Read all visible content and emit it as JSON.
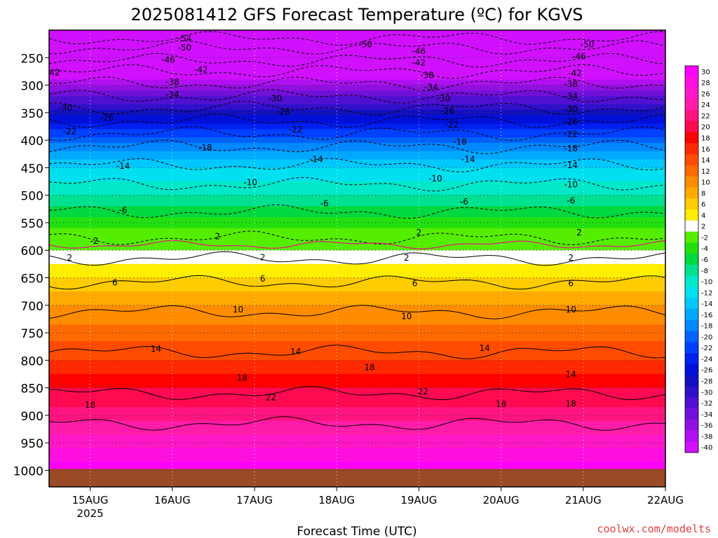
{
  "chart_data": {
    "type": "heatmap",
    "title": "2025081412 GFS Forecast Temperature (ºC) for KGVS",
    "xlabel": "Forecast Time (UTC)",
    "ylabel": "",
    "credit": "coolwx.com/modelts",
    "x_ticks": [
      {
        "t": 0.5,
        "label": "15AUG",
        "sub": "2025"
      },
      {
        "t": 1.5,
        "label": "16AUG",
        "sub": ""
      },
      {
        "t": 2.5,
        "label": "17AUG",
        "sub": ""
      },
      {
        "t": 3.5,
        "label": "18AUG",
        "sub": ""
      },
      {
        "t": 4.5,
        "label": "19AUG",
        "sub": ""
      },
      {
        "t": 5.5,
        "label": "20AUG",
        "sub": ""
      },
      {
        "t": 6.5,
        "label": "21AUG",
        "sub": ""
      },
      {
        "t": 7.5,
        "label": "22AUG",
        "sub": ""
      }
    ],
    "xlim": [
      0,
      7.5
    ],
    "y_ticks": [
      250,
      300,
      350,
      400,
      450,
      500,
      550,
      600,
      650,
      700,
      750,
      800,
      850,
      900,
      950,
      1000
    ],
    "ylim": [
      1030,
      200
    ],
    "ground_level": 1000,
    "grid": true,
    "colorbar": {
      "labels": [
        "30",
        "28",
        "26",
        "24",
        "22",
        "20",
        "18",
        "16",
        "14",
        "12",
        "10",
        "8",
        "6",
        "4",
        "2",
        "-2",
        "-4",
        "-6",
        "-8",
        "-10",
        "-12",
        "-14",
        "-16",
        "-18",
        "-20",
        "-22",
        "-24",
        "-26",
        "-28",
        "-30",
        "-32",
        "-34",
        "-36",
        "-38",
        "-40"
      ],
      "colors": [
        "#ff00ff",
        "#ff10e0",
        "#ff18c8",
        "#ff1ca8",
        "#ff1480",
        "#ff0a50",
        "#ff0000",
        "#ff2a00",
        "#ff4c00",
        "#ff6a00",
        "#ff8c00",
        "#ffaa00",
        "#ffcc00",
        "#ffee00",
        "#ffffff",
        "#55ee00",
        "#22e010",
        "#00d840",
        "#00e090",
        "#00e8c8",
        "#00e0f0",
        "#00c8ff",
        "#00a8ff",
        "#0088ff",
        "#0064ff",
        "#0040ff",
        "#0020f0",
        "#0010d8",
        "#1010c0",
        "#3010c8",
        "#5010d0",
        "#7010d8",
        "#9010e0",
        "#b010f0",
        "#d010ff"
      ]
    },
    "profile": [
      {
        "p": 200,
        "t": -58
      },
      {
        "p": 250,
        "t": -45
      },
      {
        "p": 300,
        "t": -36
      },
      {
        "p": 350,
        "t": -27
      },
      {
        "p": 400,
        "t": -19
      },
      {
        "p": 450,
        "t": -12
      },
      {
        "p": 500,
        "t": -8
      },
      {
        "p": 550,
        "t": -3
      },
      {
        "p": 575,
        "t": 0
      },
      {
        "p": 600,
        "t": 2
      },
      {
        "p": 650,
        "t": 6
      },
      {
        "p": 700,
        "t": 10
      },
      {
        "p": 750,
        "t": 13
      },
      {
        "p": 800,
        "t": 16
      },
      {
        "p": 850,
        "t": 20
      },
      {
        "p": 900,
        "t": 23
      },
      {
        "p": 950,
        "t": 27
      },
      {
        "p": 1000,
        "t": 31
      }
    ],
    "isotherms": [
      {
        "value": -54,
        "p": 215,
        "dashed": true
      },
      {
        "value": -50,
        "p": 232,
        "dashed": true
      },
      {
        "value": -46,
        "p": 255,
        "dashed": true
      },
      {
        "value": -42,
        "p": 275,
        "dashed": true
      },
      {
        "value": -38,
        "p": 297,
        "dashed": true
      },
      {
        "value": -34,
        "p": 320,
        "dashed": true
      },
      {
        "value": -30,
        "p": 342,
        "dashed": true
      },
      {
        "value": -26,
        "p": 365,
        "dashed": true
      },
      {
        "value": -22,
        "p": 388,
        "dashed": true
      },
      {
        "value": -18,
        "p": 412,
        "dashed": true
      },
      {
        "value": -14,
        "p": 445,
        "dashed": true
      },
      {
        "value": -10,
        "p": 480,
        "dashed": true
      },
      {
        "value": -6,
        "p": 530,
        "dashed": true
      },
      {
        "value": -2,
        "p": 578,
        "dashed": true
      },
      {
        "value": 2,
        "p": 615,
        "dashed": false
      },
      {
        "value": 6,
        "p": 658,
        "dashed": false
      },
      {
        "value": 10,
        "p": 712,
        "dashed": false
      },
      {
        "value": 14,
        "p": 785,
        "dashed": false
      },
      {
        "value": 18,
        "p": 860,
        "dashed": false
      },
      {
        "value": 22,
        "p": 915,
        "dashed": false
      }
    ],
    "contour_labels": [
      {
        "text": "-54",
        "t": 1.65,
        "p": 215
      },
      {
        "text": "-50",
        "t": 1.65,
        "p": 232
      },
      {
        "text": "-50",
        "t": 3.85,
        "p": 226
      },
      {
        "text": "-50",
        "t": 6.55,
        "p": 226
      },
      {
        "text": "-46",
        "t": -0.22,
        "p": 256
      },
      {
        "text": "-46",
        "t": 1.45,
        "p": 254
      },
      {
        "text": "-46",
        "t": 4.5,
        "p": 238
      },
      {
        "text": "-46",
        "t": 6.45,
        "p": 248
      },
      {
        "text": "-42",
        "t": 0.05,
        "p": 277
      },
      {
        "text": "-42",
        "t": 1.85,
        "p": 272
      },
      {
        "text": "-42",
        "t": 4.5,
        "p": 259
      },
      {
        "text": "-42",
        "t": 6.4,
        "p": 278
      },
      {
        "text": "-38",
        "t": -0.35,
        "p": 298
      },
      {
        "text": "-38",
        "t": 1.5,
        "p": 294
      },
      {
        "text": "-38",
        "t": 4.6,
        "p": 282
      },
      {
        "text": "-38",
        "t": 6.35,
        "p": 298
      },
      {
        "text": "-34",
        "t": -0.35,
        "p": 320
      },
      {
        "text": "-34",
        "t": 1.5,
        "p": 317
      },
      {
        "text": "-34",
        "t": 4.65,
        "p": 304
      },
      {
        "text": "-34",
        "t": 6.35,
        "p": 320
      },
      {
        "text": "-30",
        "t": 0.2,
        "p": 341
      },
      {
        "text": "-30",
        "t": 2.75,
        "p": 324
      },
      {
        "text": "-30",
        "t": 4.8,
        "p": 324
      },
      {
        "text": "-30",
        "t": 6.35,
        "p": 344
      },
      {
        "text": "-26",
        "t": 0.7,
        "p": 359
      },
      {
        "text": "-26",
        "t": 2.85,
        "p": 348
      },
      {
        "text": "-26",
        "t": 4.85,
        "p": 347
      },
      {
        "text": "-26",
        "t": 6.35,
        "p": 367
      },
      {
        "text": "-22",
        "t": 0.25,
        "p": 384
      },
      {
        "text": "-22",
        "t": 3.0,
        "p": 381
      },
      {
        "text": "-22",
        "t": 4.9,
        "p": 372
      },
      {
        "text": "-22",
        "t": 6.35,
        "p": 389
      },
      {
        "text": "-18",
        "t": 1.9,
        "p": 414
      },
      {
        "text": "-18",
        "t": 5.0,
        "p": 403
      },
      {
        "text": "-18",
        "t": 6.35,
        "p": 415
      },
      {
        "text": "-14",
        "t": 0.9,
        "p": 447
      },
      {
        "text": "-14",
        "t": 3.25,
        "p": 435
      },
      {
        "text": "-14",
        "t": 5.1,
        "p": 435
      },
      {
        "text": "-14",
        "t": 6.35,
        "p": 446
      },
      {
        "text": "-10",
        "t": -0.2,
        "p": 490
      },
      {
        "text": "-10",
        "t": 2.45,
        "p": 477
      },
      {
        "text": "-10",
        "t": 4.7,
        "p": 470
      },
      {
        "text": "-10",
        "t": 6.35,
        "p": 481
      },
      {
        "text": "-6",
        "t": 0.9,
        "p": 527
      },
      {
        "text": "-6",
        "t": 3.35,
        "p": 515
      },
      {
        "text": "-6",
        "t": 5.05,
        "p": 512
      },
      {
        "text": "-6",
        "t": 6.35,
        "p": 510
      },
      {
        "text": "-2",
        "t": 0.55,
        "p": 583
      },
      {
        "text": "2",
        "t": 2.05,
        "p": 575
      },
      {
        "text": "2",
        "t": 4.5,
        "p": 568
      },
      {
        "text": "2",
        "t": 6.45,
        "p": 568
      },
      {
        "text": "2",
        "t": 0.25,
        "p": 614
      },
      {
        "text": "2",
        "t": 2.6,
        "p": 613
      },
      {
        "text": "2",
        "t": 4.35,
        "p": 614
      },
      {
        "text": "2",
        "t": 6.35,
        "p": 614
      },
      {
        "text": "6",
        "t": 0.8,
        "p": 659
      },
      {
        "text": "6",
        "t": 2.6,
        "p": 652
      },
      {
        "text": "6",
        "t": 4.45,
        "p": 660
      },
      {
        "text": "6",
        "t": 6.35,
        "p": 660
      },
      {
        "text": "10",
        "t": -0.15,
        "p": 708
      },
      {
        "text": "10",
        "t": 2.3,
        "p": 708
      },
      {
        "text": "10",
        "t": 4.35,
        "p": 720
      },
      {
        "text": "10",
        "t": 6.35,
        "p": 708
      },
      {
        "text": "14",
        "t": 1.3,
        "p": 779
      },
      {
        "text": "14",
        "t": 3.0,
        "p": 784
      },
      {
        "text": "14",
        "t": 5.3,
        "p": 778
      },
      {
        "text": "14",
        "t": 6.35,
        "p": 826
      },
      {
        "text": "18",
        "t": 0.5,
        "p": 881
      },
      {
        "text": "18",
        "t": 2.35,
        "p": 832
      },
      {
        "text": "18",
        "t": 3.9,
        "p": 813
      },
      {
        "text": "18",
        "t": 5.5,
        "p": 880
      },
      {
        "text": "18",
        "t": 6.35,
        "p": 879
      },
      {
        "text": "22",
        "t": 2.7,
        "p": 868
      },
      {
        "text": "22",
        "t": 4.55,
        "p": 857
      }
    ]
  }
}
